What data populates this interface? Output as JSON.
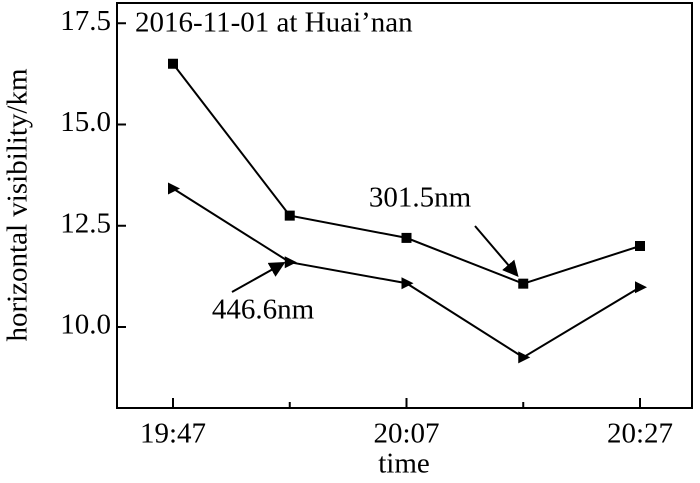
{
  "chart_data": {
    "type": "line",
    "title": "2016-11-01 at Huai’nan",
    "x_label": "time",
    "y_label": "horizontal visibility/km",
    "categories": [
      "19:47",
      null,
      "20:07",
      null,
      "20:27"
    ],
    "series": [
      {
        "name": "301.5nm",
        "color": "#000000",
        "marker": "square",
        "values": [
          16.5,
          12.75,
          12.2,
          11.07,
          12.0
        ]
      },
      {
        "name": "446.6nm",
        "color": "#000000",
        "marker": "triangle-right",
        "values": [
          13.42,
          11.6,
          11.08,
          9.25,
          10.98
        ]
      }
    ],
    "ylim": [
      8,
      18
    ],
    "yticks": [
      {
        "value": 10,
        "label": "10.0"
      },
      12.5,
      {
        "value": 15,
        "label": "15.0"
      },
      17.5
    ],
    "grid": false
  }
}
